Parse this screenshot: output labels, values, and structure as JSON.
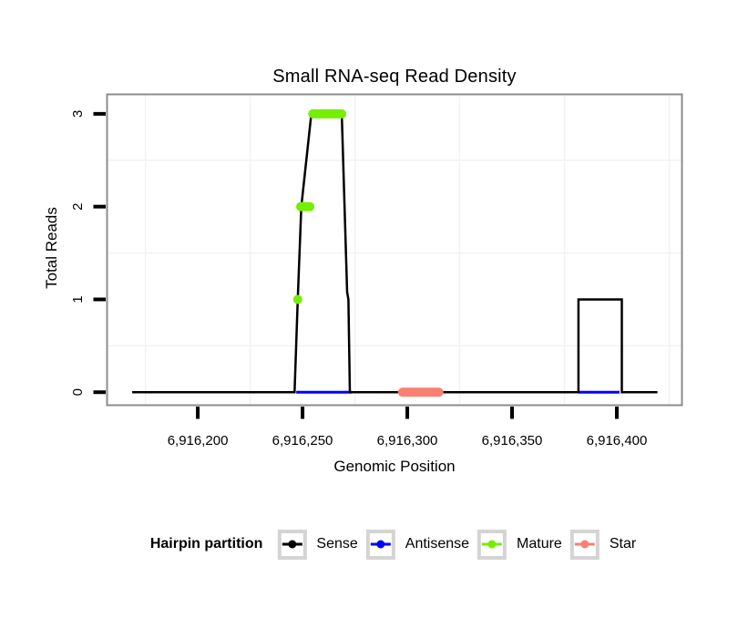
{
  "title": "Small RNA-seq Read Density",
  "axes": {
    "x_title": "Genomic Position",
    "y_title": "Total Reads"
  },
  "colors": {
    "background": "#FFFFFF",
    "panel_border": "#8C8C8C",
    "grid_minor": "#F2F2F2",
    "tick": "#000000",
    "legend_key_border": "#D4D4D4",
    "sense": "#000000",
    "antisense": "#0000FF",
    "mature": "#76EE00",
    "star": "#FA8072"
  },
  "chart_data": {
    "type": "line",
    "title": "Small RNA-seq Read Density",
    "xlabel": "Genomic Position",
    "ylabel": "Total Reads",
    "xlim": [
      6916156.7,
      6916431.1
    ],
    "ylim": [
      -0.14,
      3.21
    ],
    "grid": "minor-only",
    "legend_position": "bottom",
    "x_ticks": [
      {
        "pos": 6916200,
        "label": "6,916,200"
      },
      {
        "pos": 6916250,
        "label": "6,916,250"
      },
      {
        "pos": 6916300,
        "label": "6,916,300"
      },
      {
        "pos": 6916350,
        "label": "6,916,350"
      },
      {
        "pos": 6916400,
        "label": "6,916,400"
      }
    ],
    "y_ticks": [
      {
        "v": 0,
        "label": "0"
      },
      {
        "v": 1,
        "label": "1"
      },
      {
        "v": 2,
        "label": "2"
      },
      {
        "v": 3,
        "label": "3"
      }
    ],
    "x_minor_gridlines": [
      6916175,
      6916225,
      6916275,
      6916325,
      6916375,
      6916425
    ],
    "y_minor_gridlines": [
      0.5,
      1.5,
      2.5
    ],
    "series": [
      {
        "name": "Antisense",
        "color": "#0000FF",
        "kind": "segments",
        "width": 3,
        "linecap": "butt",
        "segments": [
          {
            "y": 0,
            "x1": 6916247.0,
            "x2": 6916273.5
          },
          {
            "y": 0,
            "x1": 6916381.7,
            "x2": 6916401.3
          }
        ]
      },
      {
        "name": "Sense",
        "color": "#000000",
        "kind": "line",
        "width": 2.5,
        "points": [
          [
            6916168.7,
            0
          ],
          [
            6916246.2,
            0
          ],
          [
            6916247.7,
            1
          ],
          [
            6916249.4,
            2
          ],
          [
            6916254.2,
            3
          ],
          [
            6916268.7,
            3
          ],
          [
            6916271.3,
            1.08
          ],
          [
            6916271.9,
            1.0
          ],
          [
            6916272.6,
            0
          ],
          [
            6916381.7,
            0
          ],
          [
            6916381.7,
            1
          ],
          [
            6916402.4,
            1
          ],
          [
            6916402.4,
            0
          ],
          [
            6916419.4,
            0
          ]
        ]
      },
      {
        "name": "Star",
        "color": "#FA8072",
        "kind": "segments",
        "width": 10,
        "linecap": "round",
        "segments": [
          {
            "y": 0,
            "x1": 6916297.7,
            "x2": 6916315.1
          }
        ]
      },
      {
        "name": "Mature",
        "color": "#76EE00",
        "kind": "segments",
        "width": 10,
        "linecap": "round",
        "segments": [
          {
            "y": 2,
            "x1": 6916249.1,
            "x2": 6916253.5
          },
          {
            "y": 3,
            "x1": 6916254.9,
            "x2": 6916268.7
          }
        ],
        "points": [
          [
            6916247.7,
            1
          ]
        ],
        "point_radius": 5
      }
    ]
  },
  "legend": {
    "title": "Hairpin partition",
    "entries": [
      {
        "label": "Sense",
        "color": "#000000"
      },
      {
        "label": "Antisense",
        "color": "#0000FF"
      },
      {
        "label": "Mature",
        "color": "#76EE00"
      },
      {
        "label": "Star",
        "color": "#FA8072"
      }
    ]
  }
}
